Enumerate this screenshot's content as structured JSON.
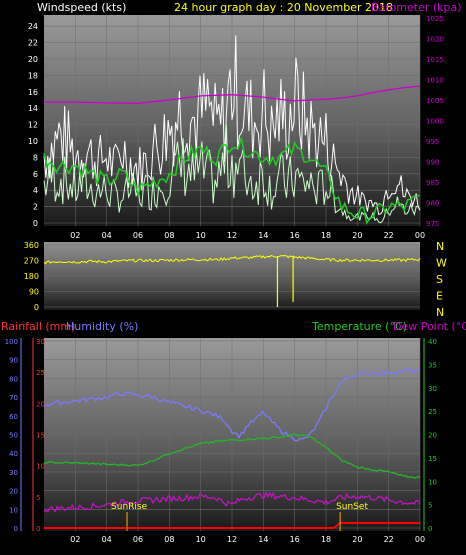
{
  "header": {
    "left_label": "Windspeed (kts)",
    "center_label": "24 hour graph day : 20 November 2018",
    "right_label": "Barometer (kpa)"
  },
  "bottom_header": {
    "rainfall_label": "Rainfall (mm)",
    "humidity_label": "Humidity (%)",
    "temperature_label": "Temperature (°C)",
    "dewpoint_label": "Dew Point (°C)"
  },
  "markers": {
    "sunrise_label": "SunRise",
    "sunset_label": "SunSet",
    "sunrise_hour": 5.3,
    "sunset_hour": 18.9
  },
  "colors": {
    "wind_gust": "#ffffff",
    "wind_avg": "#ccffcc",
    "wind_dir_trend": "#22cc22",
    "barometer": "#cc00cc",
    "direction": "#ffff00",
    "humidity": "#7a7aff",
    "temperature": "#22bb22",
    "dewpoint": "#cc11cc",
    "rainfall": "#ff0000",
    "rain_axis": "#ff3333",
    "temp_axis": "#22cc22",
    "header_yellow": "#ffff00",
    "header_magenta": "#cc00cc"
  },
  "chart_data": [
    {
      "type": "line",
      "name": "wind-barometer",
      "x_ticks": [
        "02",
        "04",
        "06",
        "08",
        "10",
        "12",
        "14",
        "16",
        "18",
        "20",
        "22",
        "00"
      ],
      "xlim": [
        0,
        24
      ],
      "ylim_left": [
        0,
        25
      ],
      "yticks_left": [
        0,
        2,
        4,
        6,
        8,
        10,
        12,
        14,
        16,
        18,
        20,
        22,
        24
      ],
      "ylim_right": [
        975,
        1025
      ],
      "yticks_right": [
        975,
        980,
        985,
        990,
        995,
        1000,
        1005,
        1010,
        1015,
        1020,
        1025
      ],
      "series": [
        {
          "key": "gust",
          "x": [
            0,
            0.5,
            1,
            1.5,
            2,
            2.5,
            3,
            3.5,
            4,
            4.5,
            5,
            5.5,
            6,
            6.5,
            7,
            7.5,
            8,
            8.5,
            9,
            9.5,
            10,
            10.5,
            11,
            11.5,
            12,
            12.5,
            13,
            13.5,
            14,
            14.5,
            15,
            15.5,
            16,
            16.5,
            17,
            17.5,
            18,
            18.5,
            19,
            19.5,
            20,
            20.5,
            21,
            21.5,
            22,
            22.5,
            23,
            23.5,
            24
          ],
          "values": [
            10,
            11,
            13,
            12,
            10,
            11,
            10,
            9,
            10,
            8,
            11,
            9,
            8,
            9,
            11,
            12,
            14,
            16,
            17,
            15,
            16,
            17,
            14,
            15,
            21,
            18,
            16,
            15,
            17,
            13,
            16,
            15,
            18,
            16,
            14,
            13,
            12,
            9,
            7,
            5,
            4,
            3,
            3,
            2,
            6,
            7,
            4,
            4,
            3
          ]
        },
        {
          "key": "average",
          "x": [
            0,
            0.5,
            1,
            1.5,
            2,
            2.5,
            3,
            3.5,
            4,
            4.5,
            5,
            5.5,
            6,
            6.5,
            7,
            7.5,
            8,
            8.5,
            9,
            9.5,
            10,
            10.5,
            11,
            11.5,
            12,
            12.5,
            13,
            13.5,
            14,
            14.5,
            15,
            15.5,
            16,
            16.5,
            17,
            17.5,
            18,
            18.5,
            19,
            19.5,
            20,
            20.5,
            21,
            21.5,
            22,
            22.5,
            23,
            23.5,
            24
          ],
          "values": [
            6,
            7,
            7,
            6,
            5,
            6,
            5,
            5,
            5,
            4,
            4,
            5,
            4,
            5,
            5,
            6,
            8,
            8,
            9,
            7,
            8,
            7,
            6,
            9,
            10,
            8,
            7,
            6,
            8,
            5,
            7,
            6,
            7,
            6,
            6,
            5,
            6,
            4,
            2,
            1,
            1,
            1,
            1,
            0,
            2,
            3,
            2,
            2,
            2
          ]
        },
        {
          "key": "trend",
          "x": [
            0,
            1,
            2,
            3,
            4,
            5,
            6,
            7,
            8,
            9,
            10,
            11,
            12,
            13,
            14,
            15,
            16,
            17,
            18,
            19,
            20,
            21,
            22,
            23,
            24
          ],
          "values": [
            8,
            7,
            7,
            6,
            5,
            6,
            4,
            5,
            6,
            8,
            9,
            8,
            10,
            9,
            8,
            8,
            9,
            8,
            6,
            2,
            1,
            1,
            2,
            2,
            3
          ]
        },
        {
          "key": "barometer",
          "x": [
            0,
            2,
            4,
            6,
            8,
            10,
            12,
            13,
            14,
            15,
            16,
            17,
            18,
            19,
            20,
            21,
            22,
            23,
            24
          ],
          "values": [
            1004.5,
            1004.5,
            1004.3,
            1004.2,
            1005,
            1006,
            1006.3,
            1006,
            1005.7,
            1005.2,
            1004.8,
            1005,
            1005.2,
            1005.5,
            1006,
            1006.8,
            1007.5,
            1008,
            1008.4
          ]
        }
      ]
    },
    {
      "type": "line",
      "name": "wind-direction",
      "direction_labels": [
        "N",
        "W",
        "S",
        "E",
        "N"
      ],
      "yticks": [
        0,
        90,
        180,
        270,
        360
      ],
      "ylim": [
        0,
        360
      ],
      "xlim": [
        0,
        24
      ],
      "x": [
        0,
        1,
        2,
        3,
        4,
        5,
        6,
        7,
        8,
        9,
        10,
        11,
        12,
        13,
        14,
        15,
        16,
        17,
        18,
        19,
        20,
        21,
        22,
        23,
        24
      ],
      "values": [
        258,
        265,
        262,
        265,
        263,
        268,
        270,
        270,
        272,
        274,
        276,
        275,
        284,
        286,
        292,
        296,
        290,
        283,
        275,
        272,
        272,
        272,
        272,
        272,
        277
      ],
      "spikes": [
        {
          "x": 14.9,
          "min": 0
        },
        {
          "x": 15.9,
          "min": 30
        }
      ]
    },
    {
      "type": "line",
      "name": "rain-humidity-temperature",
      "xlim": [
        0,
        24
      ],
      "ylim_humidity": [
        0,
        100
      ],
      "yticks_humidity": [
        0,
        10,
        20,
        30,
        40,
        50,
        60,
        70,
        80,
        90,
        100
      ],
      "ylim_rain": [
        0,
        30
      ],
      "yticks_rain": [
        0,
        5,
        10,
        15,
        20,
        25,
        30
      ],
      "ylim_temp": [
        0,
        40
      ],
      "yticks_temp": [
        0,
        5,
        10,
        15,
        20,
        25,
        30,
        35,
        40
      ],
      "series": [
        {
          "key": "humidity",
          "x": [
            0,
            1,
            2,
            3,
            4,
            5,
            6,
            7,
            8,
            9,
            10,
            11,
            11.5,
            12,
            12.5,
            13,
            13.5,
            14,
            14.5,
            15,
            15.5,
            16,
            16.5,
            17,
            17.5,
            18,
            18.5,
            19,
            19.5,
            20,
            21,
            22,
            23,
            24
          ],
          "values": [
            66,
            67,
            68,
            69,
            70,
            72,
            71,
            70,
            67,
            65,
            63,
            60,
            58,
            52,
            49,
            55,
            58,
            62,
            57,
            53,
            50,
            48,
            47,
            50,
            56,
            64,
            72,
            78,
            81,
            82,
            83,
            83,
            84,
            84
          ]
        },
        {
          "key": "temperature",
          "x": [
            0,
            1,
            2,
            3,
            4,
            5,
            6,
            7,
            8,
            9,
            10,
            11,
            12,
            13,
            14,
            15,
            16,
            17,
            18,
            19,
            20,
            21,
            22,
            23,
            24
          ],
          "values": [
            14,
            14,
            13.9,
            13.8,
            13.6,
            13.5,
            13.4,
            14.5,
            16,
            17,
            18,
            18.5,
            18.8,
            19,
            19.2,
            19.4,
            20,
            19.5,
            17.2,
            14.5,
            13,
            12.5,
            12,
            11,
            10.8
          ]
        },
        {
          "key": "dewpoint",
          "x": [
            0,
            1,
            2,
            3,
            4,
            5,
            6,
            7,
            8,
            9,
            10,
            11,
            11.5,
            12,
            12.5,
            13,
            14,
            15,
            16,
            17,
            18,
            19,
            20,
            21,
            22,
            23,
            24
          ],
          "values": [
            4,
            4.2,
            4.4,
            4.6,
            5,
            5.5,
            5.8,
            6,
            6.3,
            6.5,
            6.8,
            6.5,
            5.5,
            5,
            6,
            6.5,
            7,
            6.8,
            6.5,
            6,
            5.5,
            6.5,
            6.8,
            6.5,
            6,
            5.5,
            5.2
          ]
        },
        {
          "key": "rainfall",
          "x": [
            0,
            5,
            10,
            18.5,
            18.9,
            20,
            24
          ],
          "values": [
            0,
            0,
            0,
            0,
            0.8,
            0.8,
            0.8
          ]
        }
      ]
    }
  ]
}
